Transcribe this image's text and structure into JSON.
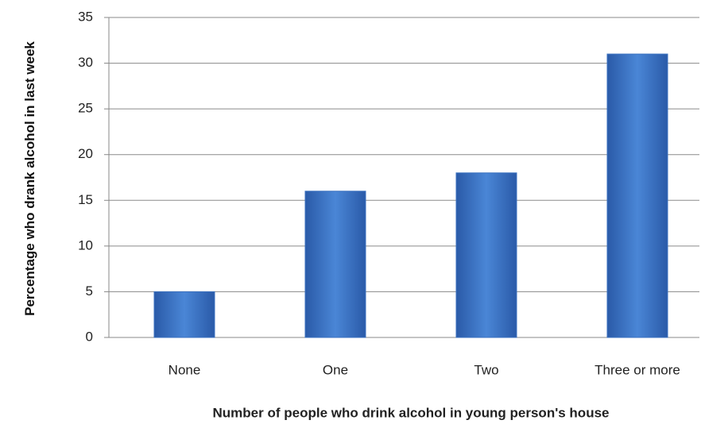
{
  "chart_data": {
    "type": "bar",
    "x_label": "Number of people who drink alcohol in young person's house",
    "y_label": "Percentage who drank alcohol in last week",
    "categories": [
      "None",
      "One",
      "Two",
      "Three or more"
    ],
    "values": [
      5,
      16,
      18,
      31
    ],
    "color": "#3b72c0",
    "ylim": [
      0,
      35
    ],
    "yticks": [
      0,
      5,
      10,
      15,
      20,
      25,
      30,
      35
    ],
    "grid": true
  }
}
